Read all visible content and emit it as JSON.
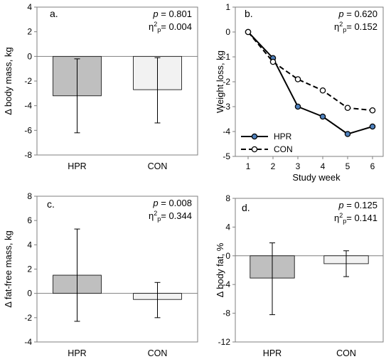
{
  "colors": {
    "hpr_bar": "#bfbfbf",
    "con_bar": "#f2f2f2",
    "bar_edge": "#000000",
    "line_marker_fill": "#4f81bd",
    "con_marker_fill": "#ffffff",
    "frame": "#7f7f7f",
    "gridline": "#d9d9d9"
  },
  "chart_data": [
    {
      "type": "bar",
      "panel_label": "a.",
      "stat_p_label": "p",
      "stat_p_value": "= 0.801",
      "stat_eta_label": "η",
      "stat_eta_sup": "2",
      "stat_eta_sub": "p",
      "stat_eta_value": "= 0.004",
      "ylabel": "Δ body mass, kg",
      "xlabel": "",
      "categories": [
        "HPR",
        "CON"
      ],
      "values": [
        -3.2,
        -2.7
      ],
      "error_low": [
        -6.2,
        -5.4
      ],
      "error_high": [
        -0.2,
        -0.1
      ],
      "ylim": [
        -8,
        4
      ],
      "yticks": [
        4,
        2,
        0,
        -2,
        -4,
        -6,
        -8
      ],
      "ytick_labels": [
        "4",
        "2",
        "0",
        "-2",
        "-4",
        "-6",
        "-8"
      ],
      "grid": false
    },
    {
      "type": "line",
      "panel_label": "b.",
      "stat_p_label": "p",
      "stat_p_value": "= 0.620",
      "stat_eta_label": "η",
      "stat_eta_sup": "2",
      "stat_eta_sub": "p",
      "stat_eta_value": "= 0.152",
      "ylabel": "Weight loss, kg",
      "xlabel": "Study week",
      "x": [
        1,
        2,
        3,
        4,
        5,
        6
      ],
      "xtick_labels": [
        "1",
        "2",
        "3",
        "4",
        "5",
        "6"
      ],
      "series": [
        {
          "name": "HPR",
          "values": [
            0,
            -1.05,
            -3.0,
            -3.4,
            -4.1,
            -3.8
          ]
        },
        {
          "name": "CON",
          "values": [
            0,
            -1.2,
            -1.9,
            -2.35,
            -3.05,
            -3.15
          ]
        }
      ],
      "ylim": [
        -5,
        1
      ],
      "yticks": [
        1,
        0,
        -1,
        -2,
        -3,
        -4,
        -5
      ],
      "ytick_labels": [
        "1",
        "0",
        "-1",
        "-2",
        "-3",
        "-4",
        "-5"
      ],
      "legend": "bottom-left",
      "grid": false
    },
    {
      "type": "bar",
      "panel_label": "c.",
      "stat_p_label": "p",
      "stat_p_value": "= 0.008",
      "stat_eta_label": "η",
      "stat_eta_sup": "2",
      "stat_eta_sub": "p",
      "stat_eta_value": "= 0.344",
      "ylabel": "Δ fat-free mass, kg",
      "xlabel": "",
      "categories": [
        "HPR",
        "CON"
      ],
      "values": [
        1.5,
        -0.5
      ],
      "error_low": [
        -2.3,
        -2.0
      ],
      "error_high": [
        5.3,
        0.9
      ],
      "ylim": [
        -4,
        8
      ],
      "yticks": [
        8,
        6,
        4,
        2,
        0,
        -2,
        -4
      ],
      "ytick_labels": [
        "8",
        "6",
        "4",
        "2",
        "0",
        "-2",
        "-4"
      ],
      "grid": false
    },
    {
      "type": "bar",
      "panel_label": "d.",
      "stat_p_label": "p",
      "stat_p_value": "= 0.125",
      "stat_eta_label": "η",
      "stat_eta_sup": "2",
      "stat_eta_sub": "p",
      "stat_eta_value": "= 0.141",
      "ylabel": "Δ body fat, %",
      "xlabel": "",
      "categories": [
        "HPR",
        "CON"
      ],
      "values": [
        -3.1,
        -1.1
      ],
      "error_low": [
        -8.2,
        -2.9
      ],
      "error_high": [
        1.8,
        0.7
      ],
      "ylim": [
        -12,
        8
      ],
      "yticks": [
        8,
        4,
        0,
        -4,
        -8,
        -12
      ],
      "ytick_labels": [
        "8",
        "4",
        "0",
        "-4",
        "-8",
        "-12"
      ],
      "grid": false
    }
  ]
}
